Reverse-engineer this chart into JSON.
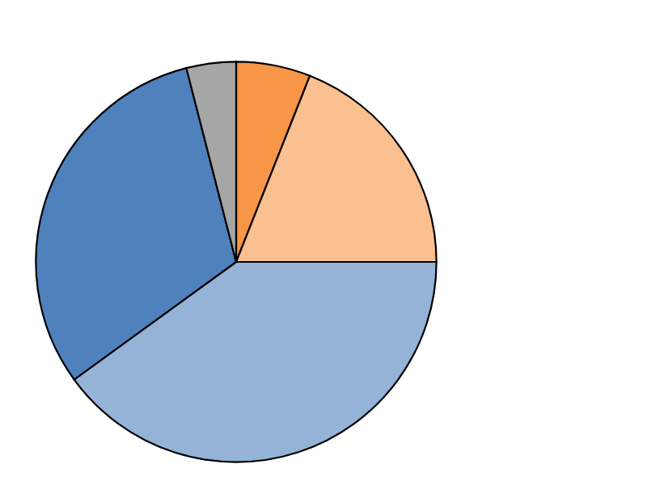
{
  "chart_data": {
    "type": "pie",
    "categories": [
      null,
      null,
      null,
      null,
      null
    ],
    "values": [
      6,
      19,
      40,
      31,
      4
    ],
    "colors": [
      "#f79646",
      "#fac090",
      "#95b3d7",
      "#4f81bd",
      "#a6a6a6"
    ]
  }
}
